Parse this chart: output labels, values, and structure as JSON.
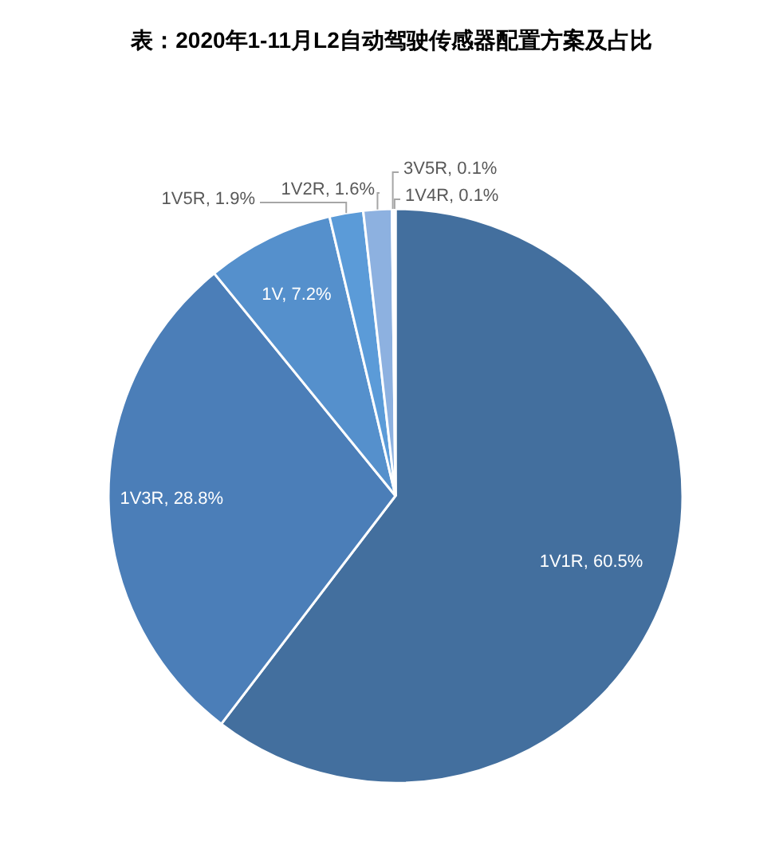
{
  "chart_data": {
    "type": "pie",
    "title": "表：2020年1-11月L2自动驾驶传感器配置方案及占比",
    "categories": [
      "1V1R",
      "1V3R",
      "1V",
      "1V5R",
      "1V2R",
      "3V5R",
      "1V4R"
    ],
    "values": [
      60.5,
      28.8,
      7.2,
      1.9,
      1.6,
      0.1,
      0.1
    ],
    "colors": [
      "#436f9e",
      "#4b7eb8",
      "#5590cc",
      "#5b9bd8",
      "#8db1e0",
      "#a9c4e8",
      "#bcd0ee"
    ],
    "value_labels": [
      ", 60.5%",
      ", 28.8%",
      ", 7.2%",
      ", 1.9%",
      ", 1.6%",
      ", 0.1%",
      ", 0.1%"
    ]
  }
}
